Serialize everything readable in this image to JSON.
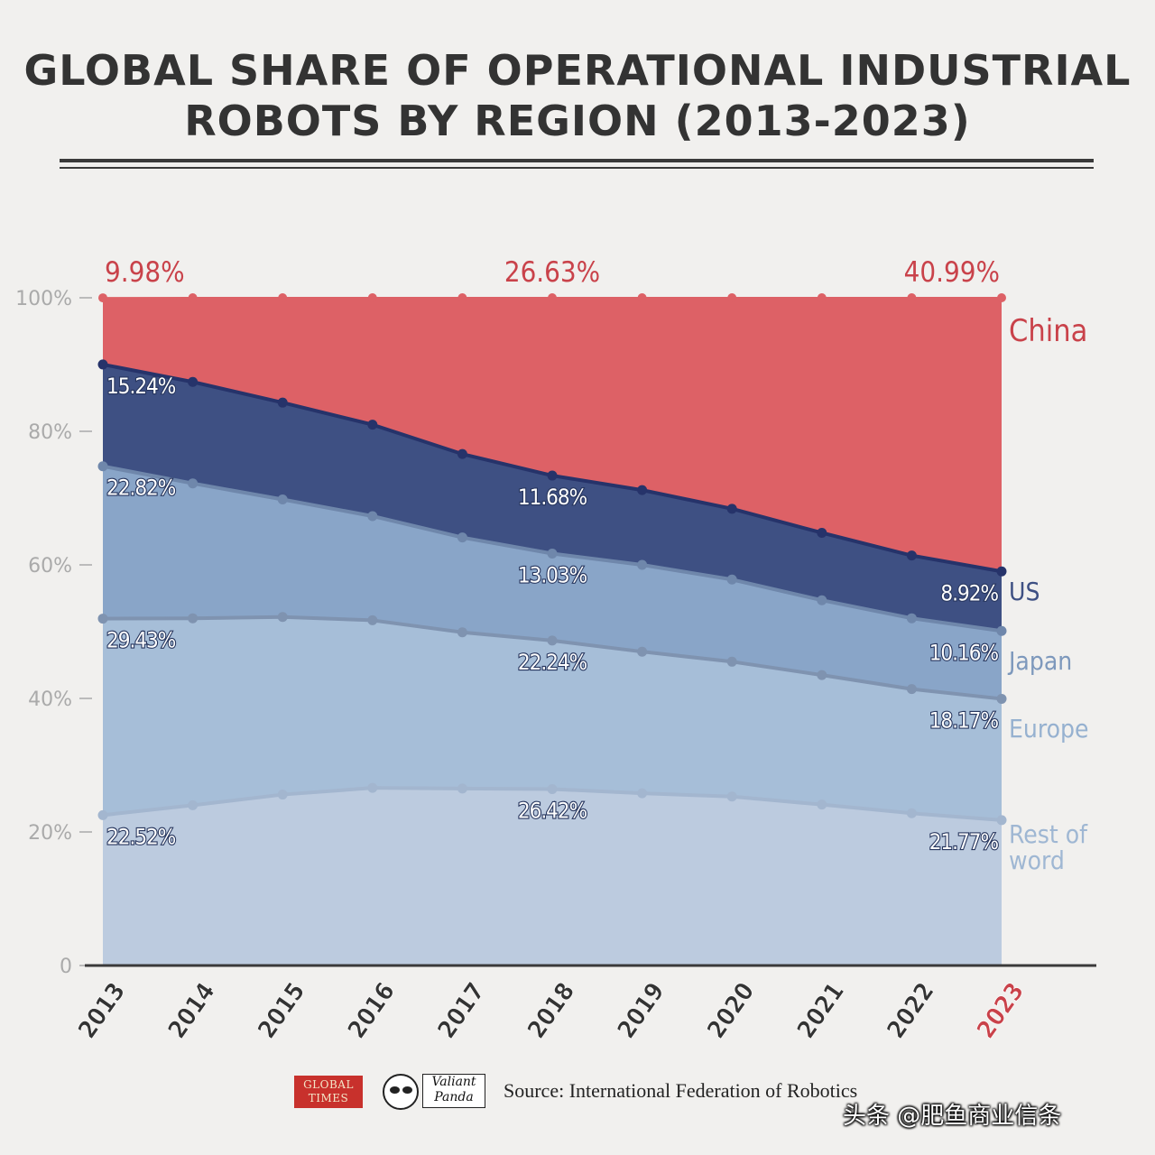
{
  "page": {
    "title_line1": "GLOBAL SHARE OF OPERATIONAL INDUSTRIAL",
    "title_line2": "ROBOTS BY REGION (2013-2023)"
  },
  "footer": {
    "global_times_line1": "GLOBAL",
    "global_times_line2": "TIMES",
    "valiant_panda_line1": "Valiant",
    "valiant_panda_line2": "Panda",
    "source": "Source: International Federation of Robotics",
    "watermark": "头条 @肥鱼商业信条"
  },
  "colors": {
    "china": "#dd6166",
    "us": "#3e5083",
    "japan": "#89a5c8",
    "europe": "#a6bed8",
    "rest": "#bccbdf",
    "china_label": "#c9424a",
    "axis_text": "#aaaaaa",
    "year_text": "#333333"
  },
  "chart_data": {
    "type": "area",
    "stacked": true,
    "title": "GLOBAL SHARE OF OPERATIONAL INDUSTRIAL ROBOTS BY REGION (2013-2023)",
    "xlabel": "",
    "ylabel": "",
    "ylim": [
      0,
      100
    ],
    "y_ticks": [
      0,
      20,
      40,
      60,
      80,
      100
    ],
    "y_tick_labels": [
      "0",
      "20%",
      "40%",
      "60%",
      "80%",
      "100%"
    ],
    "categories": [
      "2013",
      "2014",
      "2015",
      "2016",
      "2017",
      "2018",
      "2019",
      "2020",
      "2021",
      "2022",
      "2023"
    ],
    "highlight_category": "2023",
    "series": [
      {
        "name": "Rest of word",
        "label_lines": [
          "Rest of",
          "word"
        ],
        "values": [
          22.52,
          24.0,
          25.6,
          26.6,
          26.5,
          26.42,
          25.8,
          25.3,
          24.1,
          22.8,
          21.77
        ]
      },
      {
        "name": "Europe",
        "label_lines": [
          "Europe"
        ],
        "values": [
          29.43,
          28.0,
          26.6,
          25.1,
          23.4,
          22.24,
          21.2,
          20.2,
          19.4,
          18.6,
          18.17
        ]
      },
      {
        "name": "Japan",
        "label_lines": [
          "Japan"
        ],
        "values": [
          22.82,
          20.2,
          17.6,
          15.6,
          14.2,
          13.03,
          13.0,
          12.3,
          11.2,
          10.6,
          10.16
        ]
      },
      {
        "name": "US",
        "label_lines": [
          "US"
        ],
        "values": [
          15.24,
          15.2,
          14.5,
          13.7,
          12.5,
          11.68,
          11.2,
          10.6,
          10.1,
          9.4,
          8.92
        ]
      },
      {
        "name": "China",
        "label_lines": [
          "China"
        ],
        "values": [
          9.98,
          12.6,
          15.7,
          19.0,
          23.4,
          26.63,
          28.8,
          31.6,
          35.2,
          38.6,
          40.99
        ]
      }
    ],
    "data_labels": [
      {
        "series": "Rest of word",
        "category": "2013",
        "text": "22.52%"
      },
      {
        "series": "Rest of word",
        "category": "2018",
        "text": "26.42%"
      },
      {
        "series": "Rest of word",
        "category": "2023",
        "text": "21.77%"
      },
      {
        "series": "Europe",
        "category": "2013",
        "text": "29.43%"
      },
      {
        "series": "Europe",
        "category": "2018",
        "text": "22.24%"
      },
      {
        "series": "Europe",
        "category": "2023",
        "text": "18.17%"
      },
      {
        "series": "Japan",
        "category": "2013",
        "text": "22.82%"
      },
      {
        "series": "Japan",
        "category": "2018",
        "text": "13.03%"
      },
      {
        "series": "Japan",
        "category": "2023",
        "text": "10.16%"
      },
      {
        "series": "US",
        "category": "2013",
        "text": "15.24%"
      },
      {
        "series": "US",
        "category": "2018",
        "text": "11.68%"
      },
      {
        "series": "US",
        "category": "2023",
        "text": "8.92%"
      },
      {
        "series": "China",
        "category": "2013",
        "text": "9.98%"
      },
      {
        "series": "China",
        "category": "2018",
        "text": "26.63%"
      },
      {
        "series": "China",
        "category": "2023",
        "text": "40.99%"
      }
    ]
  }
}
